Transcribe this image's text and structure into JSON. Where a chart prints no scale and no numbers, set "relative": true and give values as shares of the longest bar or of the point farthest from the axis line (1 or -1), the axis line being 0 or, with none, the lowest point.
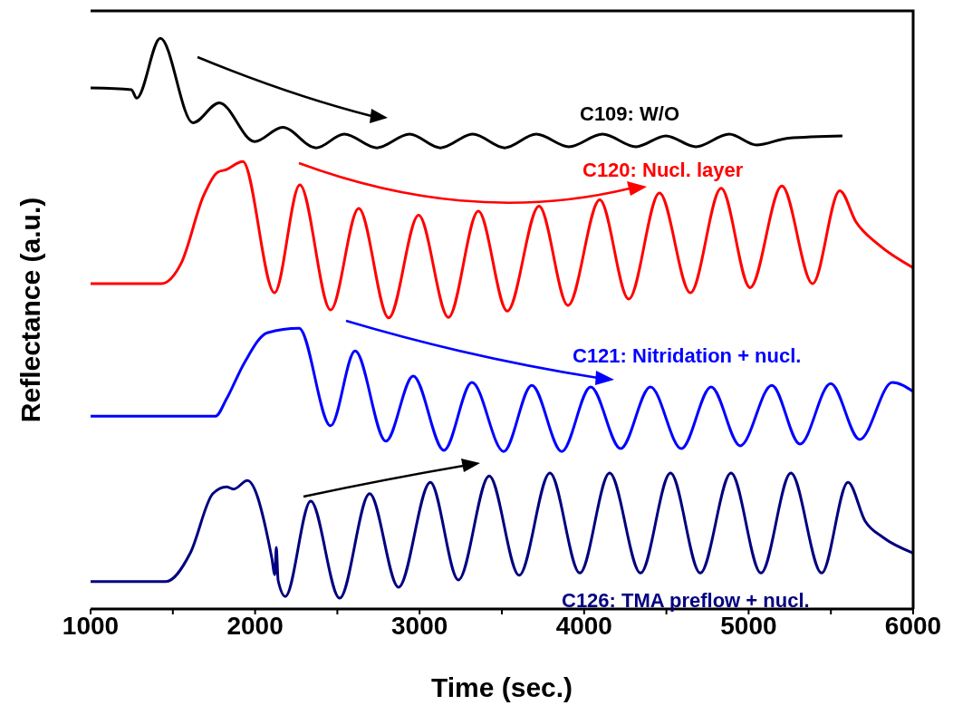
{
  "chart_data": {
    "type": "line",
    "relative": true,
    "xlabel": "Time (sec.)",
    "ylabel": "Reflectance (a.u.)",
    "xlim": [
      1000,
      6000
    ],
    "xticks": [
      1000,
      {
        "value": 1500,
        "label": null
      },
      2000,
      {
        "value": 2500,
        "label": null
      },
      3000,
      {
        "value": 3500,
        "label": null
      },
      4000,
      {
        "value": 4500,
        "label": null
      },
      5000,
      {
        "value": 5500,
        "label": null
      },
      6000
    ],
    "series": [
      {
        "name": "C109: W/O",
        "color": "#000000",
        "x": [
          1000,
          1248,
          1280,
          1424,
          1622,
          1782,
          1997,
          2167,
          2371,
          2542,
          2740,
          2939,
          3126,
          3324,
          3517,
          3709,
          3908,
          4112,
          4315,
          4497,
          4679,
          4882,
          5048,
          5240,
          5570
        ],
        "values": [
          0.913,
          0.91,
          0.895,
          1,
          0.852,
          0.887,
          0.819,
          0.844,
          0.808,
          0.832,
          0.808,
          0.832,
          0.808,
          0.832,
          0.808,
          0.832,
          0.81,
          0.832,
          0.81,
          0.829,
          0.81,
          0.832,
          0.813,
          0.825,
          0.829
        ]
      },
      {
        "name": "C120: Nucl. layer",
        "color": "#ff0000",
        "x": [
          1000,
          1430,
          1551,
          1688,
          1771,
          1826,
          1925,
          2118,
          2272,
          2459,
          2630,
          2812,
          2994,
          3175,
          3357,
          3533,
          3726,
          3902,
          4095,
          4271,
          4458,
          4646,
          4833,
          5009,
          5202,
          5389,
          5554,
          5653,
          5791,
          6000
        ],
        "values": [
          0.57,
          0.57,
          0.606,
          0.725,
          0.765,
          0.77,
          0.784,
          0.554,
          0.743,
          0.524,
          0.702,
          0.51,
          0.69,
          0.511,
          0.697,
          0.522,
          0.706,
          0.532,
          0.717,
          0.543,
          0.729,
          0.554,
          0.737,
          0.563,
          0.741,
          0.57,
          0.733,
          0.678,
          0.638,
          0.598
        ]
      },
      {
        "name": "C121: Nitridation + nucl.",
        "color": "#0000ff",
        "x": [
          1000,
          1760,
          1826,
          1936,
          2074,
          2267,
          2459,
          2608,
          2795,
          2961,
          3148,
          3318,
          3511,
          3682,
          3864,
          4040,
          4222,
          4403,
          4591,
          4772,
          4949,
          5141,
          5312,
          5499,
          5675,
          5873,
          6000
        ],
        "values": [
          0.338,
          0.338,
          0.368,
          0.432,
          0.484,
          0.492,
          0.321,
          0.452,
          0.294,
          0.408,
          0.278,
          0.397,
          0.276,
          0.392,
          0.276,
          0.389,
          0.281,
          0.389,
          0.281,
          0.389,
          0.286,
          0.392,
          0.289,
          0.395,
          0.297,
          0.397,
          0.381
        ]
      },
      {
        "name": "C126: TMA preflow + nucl.",
        "color": "#000080",
        "x": [
          1000,
          1457,
          1606,
          1743,
          1826,
          1870,
          1953,
          2101,
          2120,
          2129,
          2140,
          2184,
          2338,
          2514,
          2696,
          2872,
          3065,
          3236,
          3423,
          3605,
          3792,
          3974,
          4155,
          4343,
          4525,
          4706,
          4893,
          5075,
          5257,
          5444,
          5604,
          5708,
          5819,
          6000
        ],
        "values": [
          0.048,
          0.048,
          0.098,
          0.202,
          0.214,
          0.21,
          0.225,
          0.09,
          0.06,
          0.108,
          0.05,
          0.022,
          0.189,
          0.019,
          0.202,
          0.038,
          0.222,
          0.051,
          0.233,
          0.059,
          0.238,
          0.063,
          0.238,
          0.063,
          0.238,
          0.063,
          0.238,
          0.063,
          0.238,
          0.063,
          0.222,
          0.154,
          0.125,
          0.098
        ]
      }
    ]
  }
}
